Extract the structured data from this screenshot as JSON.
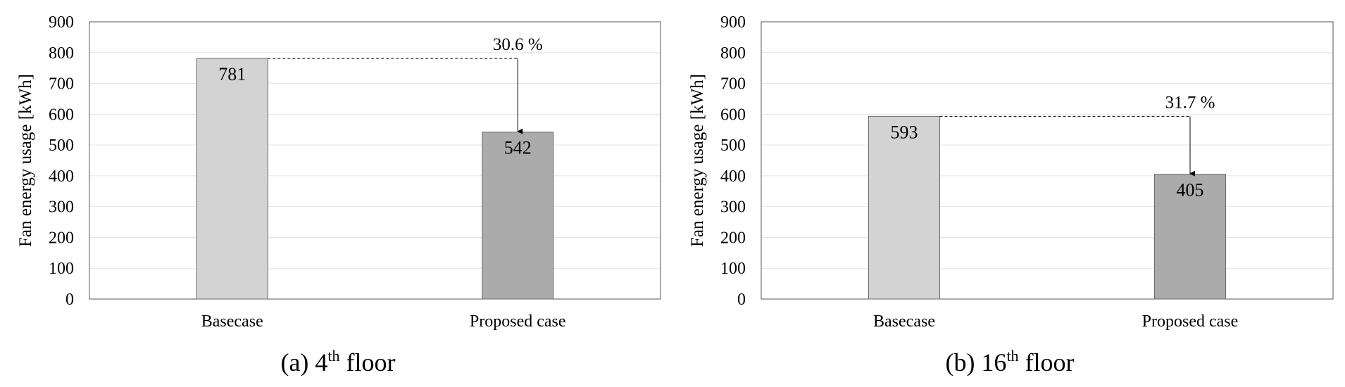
{
  "chart_data": [
    {
      "type": "bar",
      "caption": {
        "prefix": "(a) 4",
        "sup": "th",
        "suffix": " floor"
      },
      "ylabel": "Fan energy usage [kWh]",
      "ylim": [
        0,
        900
      ],
      "yticks": [
        0,
        100,
        200,
        300,
        400,
        500,
        600,
        700,
        800,
        900
      ],
      "categories": [
        "Basecase",
        "Proposed case"
      ],
      "values": [
        781,
        542
      ],
      "data_labels": [
        "781",
        "542"
      ],
      "colors": [
        "#d3d3d3",
        "#ababab"
      ],
      "annotation": "30.6 %",
      "grid": true
    },
    {
      "type": "bar",
      "caption": {
        "prefix": "(b) 16",
        "sup": "th",
        "suffix": " floor"
      },
      "ylabel": "Fan energy usage [kWh]",
      "ylim": [
        0,
        900
      ],
      "yticks": [
        0,
        100,
        200,
        300,
        400,
        500,
        600,
        700,
        800,
        900
      ],
      "categories": [
        "Basecase",
        "Proposed case"
      ],
      "values": [
        593,
        405
      ],
      "data_labels": [
        "593",
        "405"
      ],
      "colors": [
        "#d3d3d3",
        "#ababab"
      ],
      "annotation": "31.7 %",
      "grid": true
    }
  ]
}
